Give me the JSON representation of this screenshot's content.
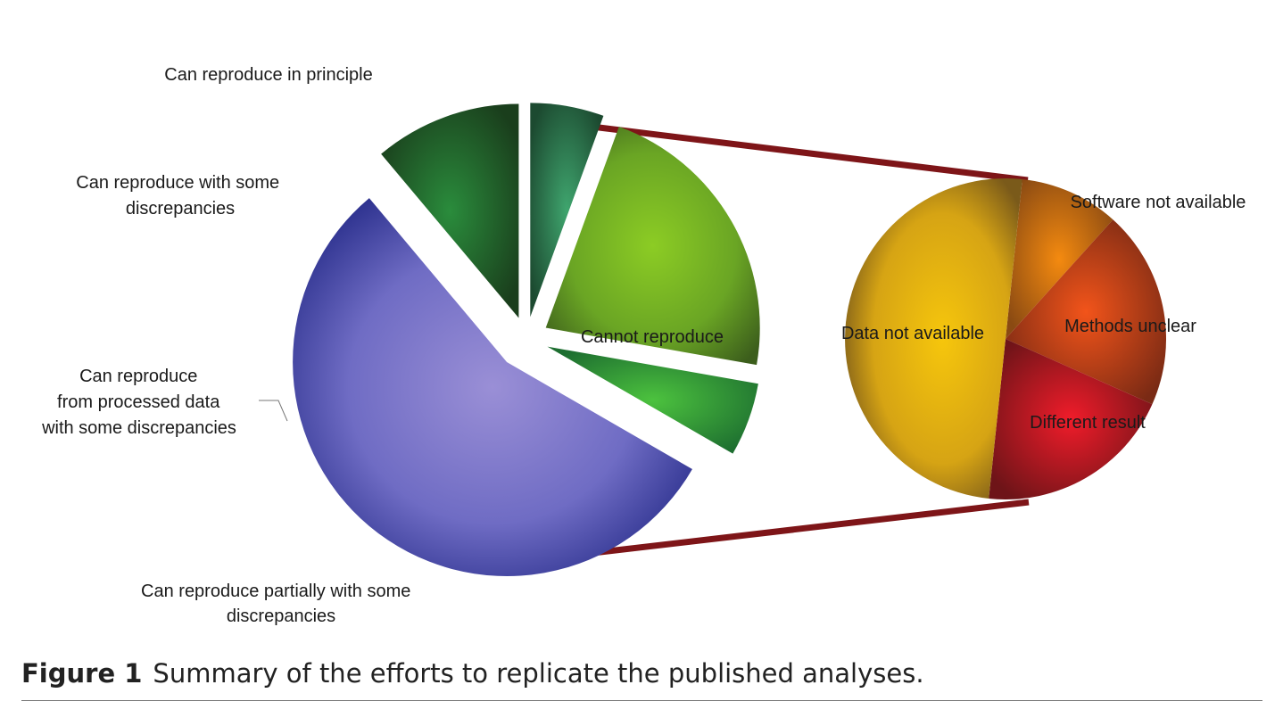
{
  "chart_data": [
    {
      "type": "pie",
      "slices": [
        {
          "label": "Can reproduce in principle",
          "value": 2,
          "color": "#2c7a3a"
        },
        {
          "label": "Can reproduce with some discrepancies",
          "value": 1,
          "color": "#3a8f66"
        },
        {
          "label": "Can reproduce from processed data with some discrepancies",
          "value": 4,
          "color": "#7ab82a"
        },
        {
          "label": "Can reproduce partially with some discrepancies",
          "value": 1,
          "color": "#3db34a"
        },
        {
          "label": "Cannot reproduce",
          "value": 10,
          "color": "#6a6ac8"
        }
      ]
    },
    {
      "type": "pie",
      "slices": [
        {
          "label": "Software not available",
          "value": 1,
          "color": "#e8860f"
        },
        {
          "label": "Methods unclear",
          "value": 2,
          "color": "#e04f18"
        },
        {
          "label": "Different result",
          "value": 2,
          "color": "#e02020"
        },
        {
          "label": "Data not available",
          "value": 5,
          "color": "#e2b10c"
        }
      ]
    }
  ],
  "caption": {
    "label": "Figure 1",
    "text": "Summary of the efforts to replicate the published analyses."
  }
}
